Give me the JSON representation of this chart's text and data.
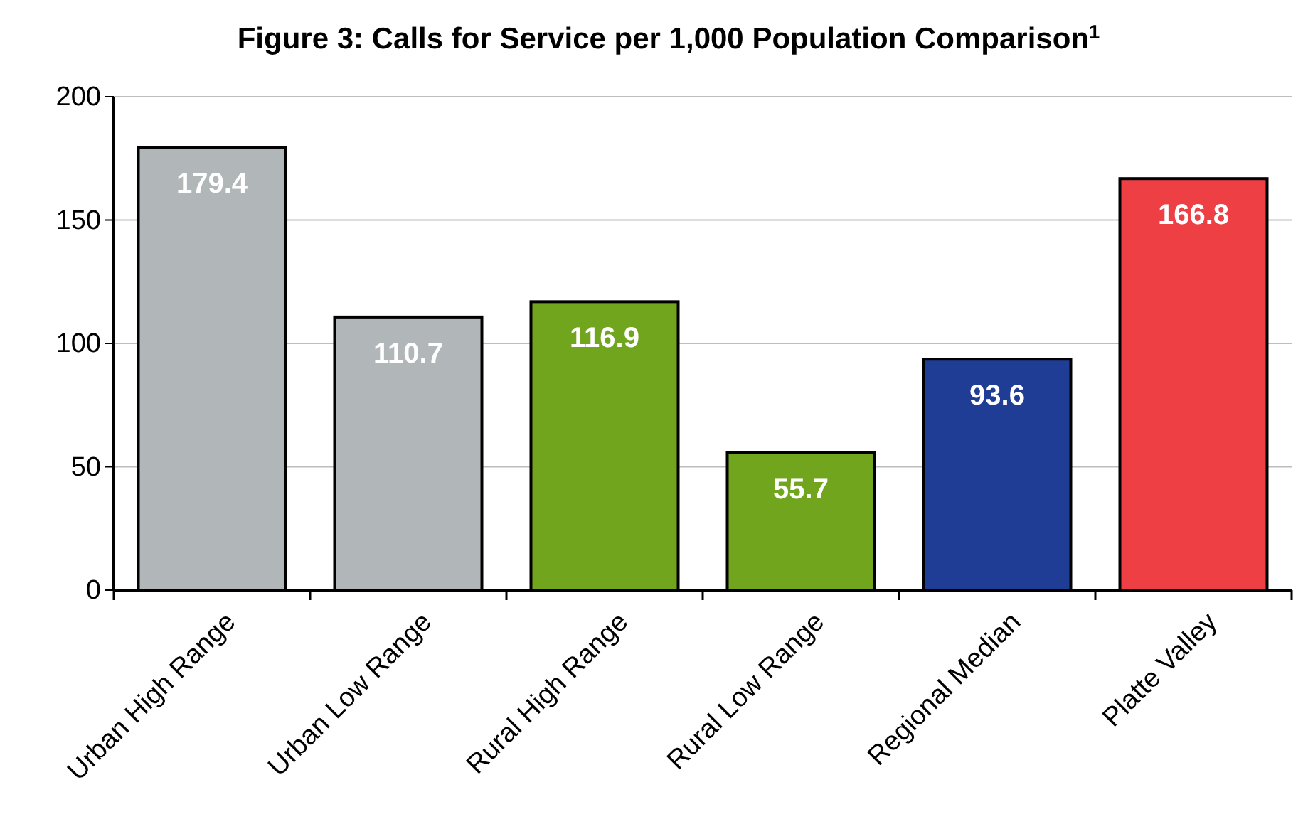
{
  "chart_data": {
    "type": "bar",
    "title": "Figure 3: Calls for Service per 1,000 Population Comparison$^{1}$",
    "categories": [
      "Urban High Range",
      "Urban Low Range",
      "Rural High Range",
      "Rural Low Range",
      "Regional Median",
      "Platte Valley"
    ],
    "values": [
      179.4,
      110.7,
      116.9,
      55.7,
      93.6,
      166.8
    ],
    "colors": [
      "#b1b6b9",
      "#b1b6b9",
      "#72a51e",
      "#72a51e",
      "#1f3d94",
      "#ee3f45"
    ],
    "ylim": [
      0,
      200
    ],
    "yticks": [
      0,
      50,
      100,
      150,
      200
    ],
    "grid": "y",
    "data_labels": true
  }
}
